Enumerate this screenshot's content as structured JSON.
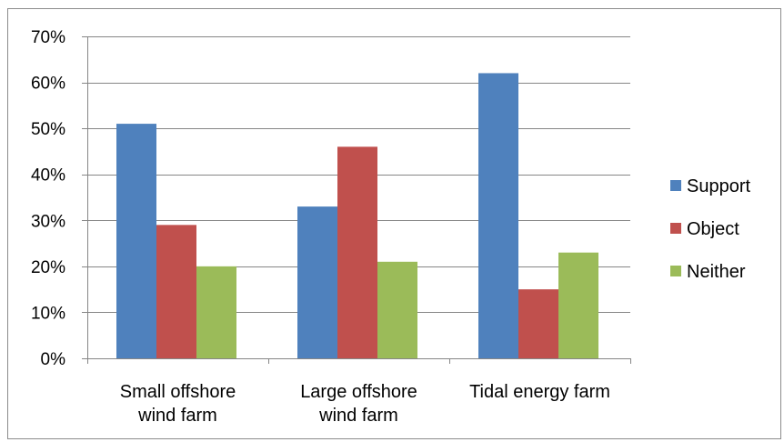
{
  "chart_data": {
    "type": "bar",
    "title": "",
    "xlabel": "",
    "ylabel": "",
    "categories": [
      [
        "Small offshore",
        "wind farm"
      ],
      [
        "Large offshore",
        "wind farm"
      ],
      [
        "Tidal energy farm"
      ]
    ],
    "series": [
      {
        "name": "Support",
        "color": "#4f81bd",
        "values": [
          51,
          33,
          62
        ]
      },
      {
        "name": "Object",
        "color": "#c0504d",
        "values": [
          29,
          46,
          15
        ]
      },
      {
        "name": "Neither",
        "color": "#9bbb59",
        "values": [
          20,
          21,
          23
        ]
      }
    ],
    "ylim": [
      0,
      70
    ],
    "yticks": [
      0,
      10,
      20,
      30,
      40,
      50,
      60,
      70
    ],
    "ytick_labels": [
      "0%",
      "10%",
      "20%",
      "30%",
      "40%",
      "50%",
      "60%",
      "70%"
    ],
    "grid": true,
    "legend_position": "right"
  }
}
